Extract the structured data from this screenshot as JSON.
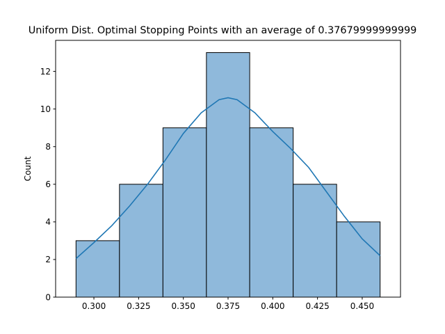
{
  "chart_data": {
    "type": "bar",
    "title": "Uniform Dist. Optimal Stopping Points with an average of 0.37679999999999",
    "xlabel": "",
    "ylabel": "Count",
    "xlim": [
      0.2786,
      0.4714
    ],
    "ylim": [
      0,
      13.65
    ],
    "xticks": [
      0.3,
      0.325,
      0.35,
      0.375,
      0.4,
      0.425,
      0.45
    ],
    "xtick_labels": [
      "0.300",
      "0.325",
      "0.350",
      "0.375",
      "0.400",
      "0.425",
      "0.450"
    ],
    "yticks": [
      0,
      2,
      4,
      6,
      8,
      10,
      12
    ],
    "ytick_labels": [
      "0",
      "2",
      "4",
      "6",
      "8",
      "10",
      "12"
    ],
    "bin_edges": [
      0.29,
      0.3143,
      0.3386,
      0.3629,
      0.3871,
      0.4114,
      0.4357,
      0.46
    ],
    "values": [
      3,
      6,
      9,
      13,
      9,
      6,
      4
    ],
    "kde": {
      "x": [
        0.29,
        0.3,
        0.31,
        0.32,
        0.33,
        0.34,
        0.35,
        0.36,
        0.37,
        0.375,
        0.38,
        0.39,
        0.4,
        0.41,
        0.42,
        0.43,
        0.44,
        0.45,
        0.46
      ],
      "y": [
        2.05,
        2.9,
        3.8,
        4.85,
        6.0,
        7.3,
        8.7,
        9.8,
        10.5,
        10.6,
        10.5,
        9.8,
        8.8,
        7.9,
        6.9,
        5.6,
        4.3,
        3.1,
        2.2
      ]
    },
    "grid": false,
    "legend": "none",
    "colors": {
      "bar_fill": "#8fb9db",
      "bar_edge": "#000000",
      "kde_line": "#1f77b4"
    }
  }
}
